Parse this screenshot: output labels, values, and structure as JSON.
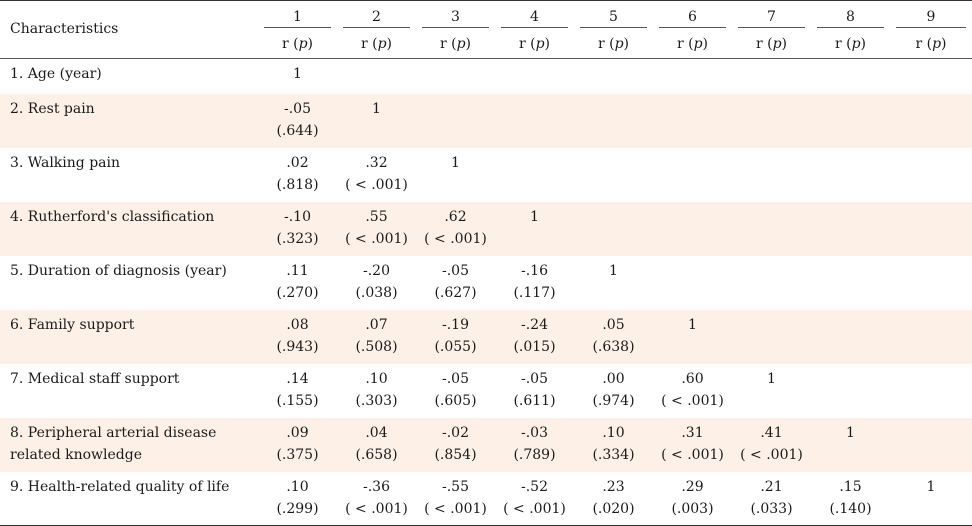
{
  "table": {
    "header_label": "Characteristics",
    "columns": [
      "1",
      "2",
      "3",
      "4",
      "5",
      "6",
      "7",
      "8",
      "9"
    ],
    "subheader_prefix": "r (",
    "subheader_p": "p",
    "subheader_suffix": ")",
    "rows": [
      {
        "label": "1. Age (year)",
        "cells": [
          {
            "r": "1",
            "p": ""
          }
        ]
      },
      {
        "label": "2. Rest pain",
        "cells": [
          {
            "r": "-.05",
            "p": "(.644)"
          },
          {
            "r": "1",
            "p": ""
          }
        ]
      },
      {
        "label": "3. Walking pain",
        "cells": [
          {
            "r": ".02",
            "p": "(.818)"
          },
          {
            "r": ".32",
            "p": "( < .001)"
          },
          {
            "r": "1",
            "p": ""
          }
        ]
      },
      {
        "label": "4. Rutherford's classification",
        "cells": [
          {
            "r": "-.10",
            "p": "(.323)"
          },
          {
            "r": ".55",
            "p": "( < .001)"
          },
          {
            "r": ".62",
            "p": "( < .001)"
          },
          {
            "r": "1",
            "p": ""
          }
        ]
      },
      {
        "label": "5. Duration of diagnosis (year)",
        "cells": [
          {
            "r": ".11",
            "p": "(.270)"
          },
          {
            "r": "-.20",
            "p": "(.038)"
          },
          {
            "r": "-.05",
            "p": "(.627)"
          },
          {
            "r": "-.16",
            "p": "(.117)"
          },
          {
            "r": "1",
            "p": ""
          }
        ]
      },
      {
        "label": "6. Family support",
        "cells": [
          {
            "r": ".08",
            "p": "(.943)"
          },
          {
            "r": ".07",
            "p": "(.508)"
          },
          {
            "r": "-.19",
            "p": "(.055)"
          },
          {
            "r": "-.24",
            "p": "(.015)"
          },
          {
            "r": ".05",
            "p": "(.638)"
          },
          {
            "r": "1",
            "p": ""
          }
        ]
      },
      {
        "label": "7. Medical staff support",
        "cells": [
          {
            "r": ".14",
            "p": "(.155)"
          },
          {
            "r": ".10",
            "p": "(.303)"
          },
          {
            "r": "-.05",
            "p": "(.605)"
          },
          {
            "r": "-.05",
            "p": "(.611)"
          },
          {
            "r": ".00",
            "p": "(.974)"
          },
          {
            "r": ".60",
            "p": "( < .001)"
          },
          {
            "r": "1",
            "p": ""
          }
        ]
      },
      {
        "label": "8. Peripheral arterial disease related knowledge",
        "cells": [
          {
            "r": ".09",
            "p": "(.375)"
          },
          {
            "r": ".04",
            "p": "(.658)"
          },
          {
            "r": "-.02",
            "p": "(.854)"
          },
          {
            "r": "-.03",
            "p": "(.789)"
          },
          {
            "r": ".10",
            "p": "(.334)"
          },
          {
            "r": ".31",
            "p": "( < .001)"
          },
          {
            "r": ".41",
            "p": "( < .001)"
          },
          {
            "r": "1",
            "p": ""
          }
        ]
      },
      {
        "label": "9. Health-related quality of life",
        "cells": [
          {
            "r": ".10",
            "p": "(.299)"
          },
          {
            "r": "-.36",
            "p": "( < .001)"
          },
          {
            "r": "-.55",
            "p": "( < .001)"
          },
          {
            "r": "-.52",
            "p": "( < .001)"
          },
          {
            "r": ".23",
            "p": "(.020)"
          },
          {
            "r": ".29",
            "p": "(.003)"
          },
          {
            "r": ".21",
            "p": "(.033)"
          },
          {
            "r": ".15",
            "p": "(.140)"
          },
          {
            "r": "1",
            "p": ""
          }
        ]
      }
    ],
    "shade_color": "#fdf1e7"
  }
}
